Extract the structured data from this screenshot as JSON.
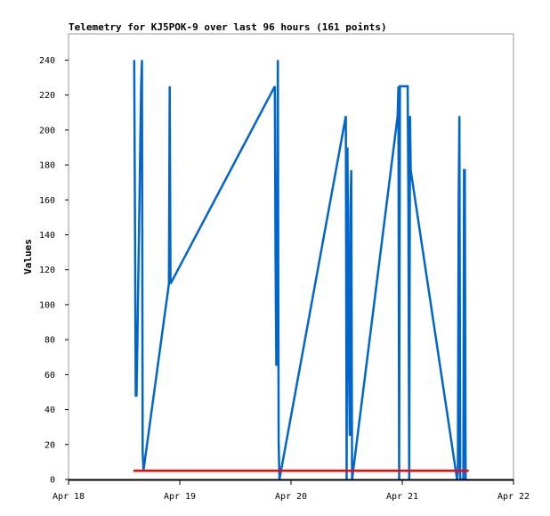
{
  "chart_data": {
    "type": "line",
    "title": "Telemetry for KJ5POK-9 over last 96 hours (161 points)",
    "xlabel": "",
    "ylabel": "Values",
    "xlim": [
      "04-18 00:00",
      "04-22 00:00"
    ],
    "ylim": [
      0,
      255
    ],
    "x_ticks": [
      "Apr 18",
      "Apr 19",
      "Apr 20",
      "Apr 21",
      "Apr 22"
    ],
    "x_tick_dates": [
      "04-18 00:00",
      "04-19 00:00",
      "04-20 00:00",
      "04-21 00:00",
      "04-22 00:00"
    ],
    "y_ticks": [
      0,
      20,
      40,
      60,
      80,
      100,
      120,
      140,
      160,
      180,
      200,
      220,
      240
    ],
    "grid": false,
    "series": [
      {
        "color": "#0066cc",
        "points": [
          [
            "04-18 14:10",
            240
          ],
          [
            "04-18 14:20",
            145
          ],
          [
            "04-18 14:30",
            48
          ],
          [
            "04-18 14:40",
            48
          ],
          [
            "04-18 14:50",
            75
          ],
          [
            "04-18 15:00",
            105
          ],
          [
            "04-18 15:10",
            135
          ],
          [
            "04-18 15:20",
            165
          ],
          [
            "04-18 15:30",
            195
          ],
          [
            "04-18 15:40",
            225
          ],
          [
            "04-18 15:50",
            240
          ],
          [
            "04-18 16:00",
            16
          ],
          [
            "04-18 16:10",
            5
          ],
          [
            "04-18 21:40",
            112
          ],
          [
            "04-18 21:50",
            225
          ],
          [
            "04-18 22:00",
            112
          ],
          [
            "04-19 20:30",
            225
          ],
          [
            "04-19 20:40",
            128
          ],
          [
            "04-19 20:50",
            65
          ],
          [
            "04-19 21:00",
            107
          ],
          [
            "04-19 21:10",
            240
          ],
          [
            "04-19 21:20",
            22
          ],
          [
            "04-19 21:30",
            0
          ],
          [
            "04-20 11:50",
            208
          ],
          [
            "04-20 12:00",
            0
          ],
          [
            "04-20 12:10",
            190
          ],
          [
            "04-20 12:20",
            130
          ],
          [
            "04-20 12:30",
            67
          ],
          [
            "04-20 12:40",
            25
          ],
          [
            "04-20 12:50",
            155
          ],
          [
            "04-20 13:00",
            177
          ],
          [
            "04-20 13:10",
            0
          ],
          [
            "04-20 23:00",
            208
          ],
          [
            "04-20 23:10",
            225
          ],
          [
            "04-20 23:20",
            0
          ],
          [
            "04-20 23:30",
            225
          ],
          [
            "04-21 01:10",
            225
          ],
          [
            "04-21 01:20",
            157
          ],
          [
            "04-21 01:30",
            0
          ],
          [
            "04-21 01:40",
            208
          ],
          [
            "04-21 01:50",
            177
          ],
          [
            "04-21 11:50",
            0
          ],
          [
            "04-21 12:00",
            5
          ],
          [
            "04-21 12:10",
            160
          ],
          [
            "04-21 12:20",
            208
          ],
          [
            "04-21 12:30",
            0
          ],
          [
            "04-21 13:10",
            0
          ],
          [
            "04-21 13:20",
            177
          ],
          [
            "04-21 13:30",
            177
          ],
          [
            "04-21 13:40",
            0
          ]
        ]
      },
      {
        "color": "#ff0000",
        "points": [
          [
            "04-18 14:00",
            5
          ],
          [
            "04-21 14:20",
            5
          ]
        ]
      }
    ]
  }
}
